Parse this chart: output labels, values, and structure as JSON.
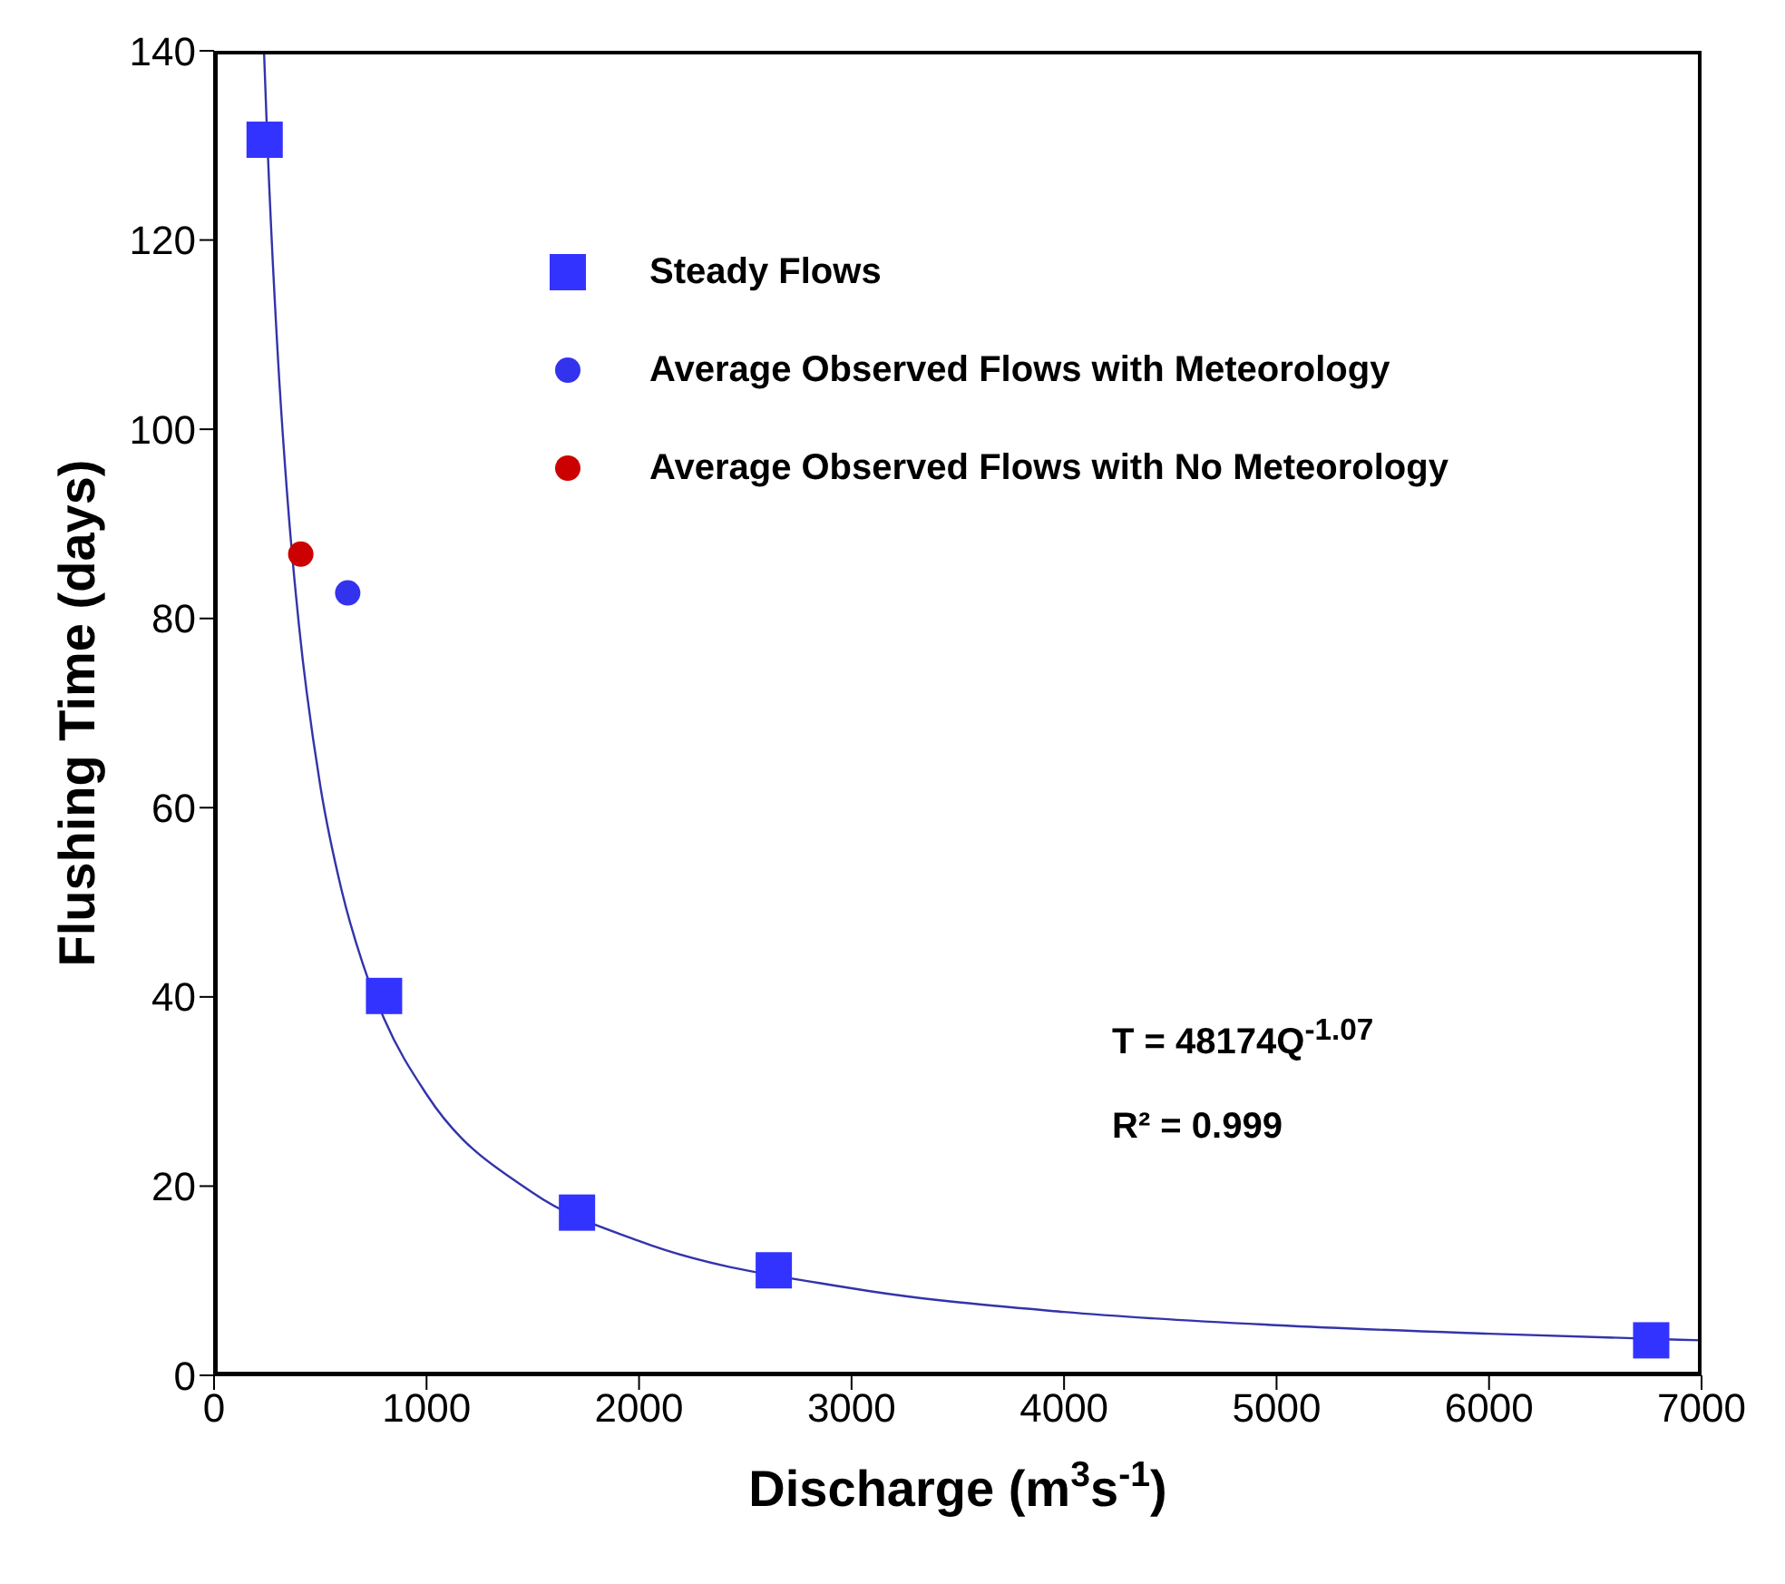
{
  "chart_data": {
    "type": "scatter",
    "xlabel": "Discharge (m$^{3}$s$^{-1}$)",
    "ylabel": "Flushing Time (days)",
    "xlim": [
      0,
      7000
    ],
    "ylim": [
      0,
      140
    ],
    "xticks": [
      0,
      1000,
      2000,
      3000,
      4000,
      5000,
      6000,
      7000
    ],
    "yticks": [
      0,
      20,
      40,
      60,
      80,
      100,
      120,
      140
    ],
    "grid": false,
    "legend": "top",
    "annotations": [
      "T = 48174Q$^{-1.07}$",
      "R² = 0.999"
    ],
    "series": [
      {
        "name": "Steady Flows",
        "marker": "square",
        "color": "#3333ff",
        "x": [
          238,
          800,
          1708,
          2634,
          6763
        ],
        "values": [
          130.6,
          40.1,
          17.2,
          11.1,
          3.7
        ]
      },
      {
        "name": "Average Observed Flows with Meteorology",
        "marker": "circle",
        "color": "#3333ee",
        "x": [
          629
        ],
        "values": [
          82.7
        ]
      },
      {
        "name": "Average Observed Flows with No Meteorology",
        "marker": "circle",
        "color": "#cc0000",
        "x": [
          408
        ],
        "values": [
          86.8
        ]
      },
      {
        "type": "line",
        "color": "#3333aa",
        "x": [
          235,
          250,
          300,
          350,
          400,
          500,
          600,
          700,
          800,
          1000,
          1500,
          2000,
          3000,
          4000,
          5000,
          6000,
          7000
        ],
        "values": [
          140,
          130.9,
          107.8,
          91.4,
          79.2,
          62.3,
          51.3,
          43.5,
          37.7,
          29.7,
          19.3,
          14.2,
          9.2,
          6.7,
          5.3,
          4.4,
          3.7
        ]
      }
    ]
  }
}
